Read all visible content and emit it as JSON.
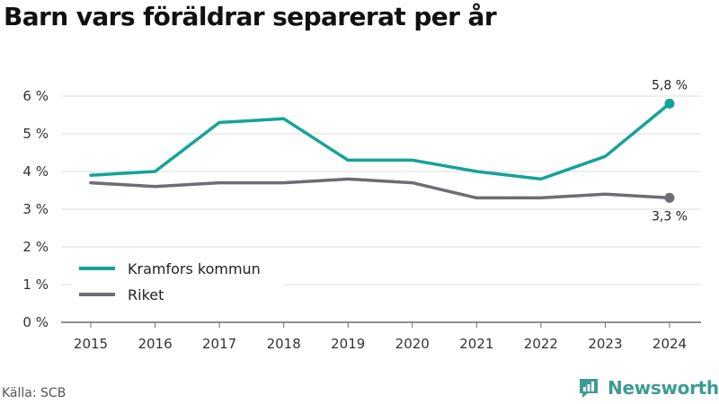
{
  "title": "Barn vars föräldrar separerat per år",
  "source": "Källa: SCB",
  "brand": {
    "name": "Newsworthy",
    "icon": "newsworthy-logo-icon",
    "color": "#3d9b96"
  },
  "chart_data": {
    "type": "line",
    "x": [
      "2015",
      "2016",
      "2017",
      "2018",
      "2019",
      "2020",
      "2021",
      "2022",
      "2023",
      "2024"
    ],
    "series": [
      {
        "name": "Kramfors kommun",
        "color": "#14a39a",
        "values": [
          3.9,
          4.0,
          5.3,
          5.4,
          4.3,
          4.3,
          4.0,
          3.8,
          4.4,
          5.8
        ],
        "end_label": "5,8 %"
      },
      {
        "name": "Riket",
        "color": "#6e6d75",
        "values": [
          3.7,
          3.6,
          3.7,
          3.7,
          3.8,
          3.7,
          3.3,
          3.3,
          3.4,
          3.3
        ],
        "end_label": "3,3 %"
      }
    ],
    "ylim": [
      0,
      6
    ],
    "yticks": [
      0,
      1,
      2,
      3,
      4,
      5,
      6
    ],
    "ytick_labels": [
      "0 %",
      "1 %",
      "2 %",
      "3 %",
      "4 %",
      "5 %",
      "6 %"
    ],
    "xlabel": "",
    "ylabel": "",
    "grid": true,
    "legend": "bottom-left"
  }
}
